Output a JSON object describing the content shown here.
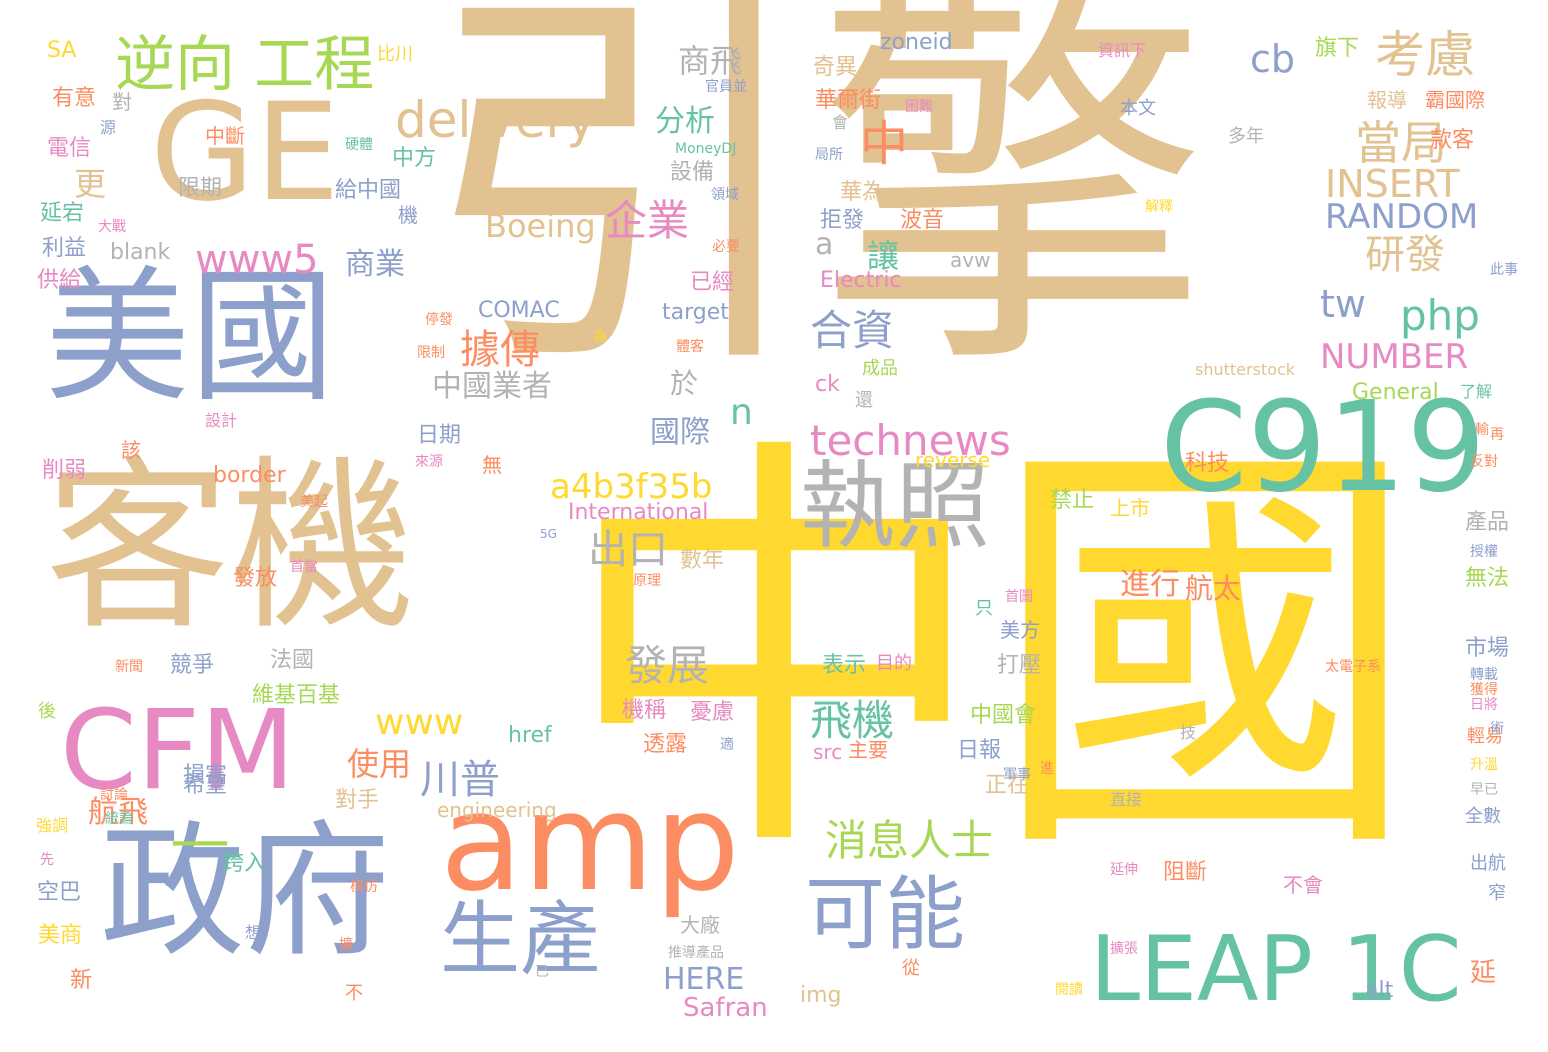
{
  "palette": {
    "tan": "#e2c290",
    "blue": "#8da0cb",
    "yellow": "#ffd92f",
    "green": "#66c2a5",
    "orange": "#fc8d62",
    "pink": "#e78ac3",
    "lime": "#a6d854",
    "gray": "#b3b3b3"
  },
  "words": [
    {
      "text": "引擎",
      "color": "tan",
      "rank": 1
    },
    {
      "text": "中國",
      "color": "yellow",
      "rank": 2
    },
    {
      "text": "客機",
      "color": "tan",
      "rank": 3
    },
    {
      "text": "美國",
      "color": "blue",
      "rank": 4
    },
    {
      "text": "政府",
      "color": "blue",
      "rank": 5
    },
    {
      "text": "GE",
      "color": "tan",
      "rank": 6
    },
    {
      "text": "amp",
      "color": "orange",
      "rank": 7
    },
    {
      "text": "C919",
      "color": "green",
      "rank": 8
    },
    {
      "text": "執照",
      "color": "gray",
      "rank": 9
    },
    {
      "text": "CFM",
      "color": "pink",
      "rank": 10
    },
    {
      "text": "LEAP 1C",
      "color": "green",
      "rank": 11
    },
    {
      "text": "生產",
      "color": "blue",
      "rank": 12
    },
    {
      "text": "可能",
      "color": "blue",
      "rank": 13
    },
    {
      "text": "逆向 工程",
      "color": "lime",
      "rank": 14
    },
    {
      "text": "—",
      "color": "lime",
      "rank": 15
    },
    {
      "text": "delivery",
      "color": "tan",
      "rank": 16
    },
    {
      "text": "technews",
      "color": "pink",
      "rank": 17
    },
    {
      "text": "a4b3f35b",
      "color": "yellow",
      "rank": 18
    },
    {
      "text": "消息人士",
      "color": "lime",
      "rank": 19
    },
    {
      "text": "考慮",
      "color": "tan",
      "rank": 20
    },
    {
      "text": "cb",
      "color": "blue",
      "rank": 21
    },
    {
      "text": "當局",
      "color": "tan",
      "rank": 22
    },
    {
      "text": "INSERT",
      "color": "tan",
      "rank": 23
    },
    {
      "text": "RANDOM",
      "color": "blue",
      "rank": 24
    },
    {
      "text": "研發",
      "color": "tan",
      "rank": 25
    },
    {
      "text": "tw",
      "color": "blue",
      "rank": 26
    },
    {
      "text": "php",
      "color": "green",
      "rank": 27
    },
    {
      "text": "NUMBER",
      "color": "pink",
      "rank": 28
    },
    {
      "text": "企業",
      "color": "pink",
      "rank": 29
    },
    {
      "text": "Boeing",
      "color": "tan",
      "rank": 30
    },
    {
      "text": "www5",
      "color": "pink",
      "rank": 31
    },
    {
      "text": "商業",
      "color": "blue",
      "rank": 32
    },
    {
      "text": "合資",
      "color": "blue",
      "rank": 33
    },
    {
      "text": "據傳",
      "color": "orange",
      "rank": 34
    },
    {
      "text": "出口",
      "color": "gray",
      "rank": 35
    },
    {
      "text": "發展",
      "color": "gray",
      "rank": 36
    },
    {
      "text": "飛機",
      "color": "green",
      "rank": 37
    },
    {
      "text": "川普",
      "color": "blue",
      "rank": 38
    },
    {
      "text": "www",
      "color": "yellow",
      "rank": 39
    },
    {
      "text": "中國業者",
      "color": "gray",
      "rank": 40
    },
    {
      "text": "國際",
      "color": "blue",
      "rank": 41
    },
    {
      "text": "n",
      "color": "green",
      "rank": 42
    },
    {
      "text": "中",
      "color": "orange",
      "rank": 43
    },
    {
      "text": "a",
      "color": "gray",
      "rank": 44
    },
    {
      "text": "讓",
      "color": "green",
      "rank": 45
    },
    {
      "text": "商飛",
      "color": "gray",
      "rank": 46
    },
    {
      "text": "分析",
      "color": "green",
      "rank": 47
    },
    {
      "text": "更",
      "color": "tan",
      "rank": 48
    },
    {
      "text": "使用",
      "color": "orange",
      "rank": 49
    },
    {
      "text": "航飛",
      "color": "orange",
      "rank": 50
    },
    {
      "text": "HERE",
      "color": "blue",
      "rank": 51
    },
    {
      "text": "Safran",
      "color": "pink",
      "rank": 52
    },
    {
      "text": "zoneid",
      "color": "blue",
      "rank": 53
    },
    {
      "text": "旗下",
      "color": "lime",
      "rank": 54
    },
    {
      "text": "款客",
      "color": "orange",
      "rank": 55
    },
    {
      "text": "華爾街",
      "color": "orange",
      "rank": 56
    },
    {
      "text": "奇異",
      "color": "tan",
      "rank": 57
    },
    {
      "text": "霸國際",
      "color": "orange",
      "rank": 58
    },
    {
      "text": "報導",
      "color": "tan",
      "rank": 59
    },
    {
      "text": "華為",
      "color": "tan",
      "rank": 60
    },
    {
      "text": "拒發",
      "color": "blue",
      "rank": 61
    },
    {
      "text": "波音",
      "color": "orange",
      "rank": 62
    },
    {
      "text": "Electric",
      "color": "pink",
      "rank": 63
    },
    {
      "text": "avw",
      "color": "gray",
      "rank": 64
    },
    {
      "text": "target",
      "color": "blue",
      "rank": 65
    },
    {
      "text": "已經",
      "color": "pink",
      "rank": 66
    },
    {
      "text": "COMAC",
      "color": "blue",
      "rank": 67
    },
    {
      "text": "General",
      "color": "lime",
      "rank": 68
    },
    {
      "text": "ck",
      "color": "pink",
      "rank": 69
    },
    {
      "text": "成品",
      "color": "lime",
      "rank": 70
    },
    {
      "text": "shutterstock",
      "color": "tan",
      "rank": 71
    },
    {
      "text": "科技",
      "color": "orange",
      "rank": 72
    },
    {
      "text": "reverse",
      "color": "yellow",
      "rank": 73
    },
    {
      "text": "International",
      "color": "pink",
      "rank": 74
    },
    {
      "text": "禁止",
      "color": "lime",
      "rank": 75
    },
    {
      "text": "上市",
      "color": "yellow",
      "rank": 76
    },
    {
      "text": "產品",
      "color": "gray",
      "rank": 77
    },
    {
      "text": "進行",
      "color": "orange",
      "rank": 78
    },
    {
      "text": "航太",
      "color": "orange",
      "rank": 79
    },
    {
      "text": "數年",
      "color": "tan",
      "rank": 80
    },
    {
      "text": "日期",
      "color": "blue",
      "rank": 81
    },
    {
      "text": "於",
      "color": "gray",
      "rank": 82
    },
    {
      "text": "border",
      "color": "orange",
      "rank": 83
    },
    {
      "text": "blank",
      "color": "gray",
      "rank": 84
    },
    {
      "text": "SA",
      "color": "yellow",
      "rank": 85
    },
    {
      "text": "有意",
      "color": "orange",
      "rank": 86
    },
    {
      "text": "電信",
      "color": "pink",
      "rank": 87
    },
    {
      "text": "延宕",
      "color": "green",
      "rank": 88
    },
    {
      "text": "利益",
      "color": "blue",
      "rank": 89
    },
    {
      "text": "供給",
      "color": "pink",
      "rank": 90
    },
    {
      "text": "削弱",
      "color": "pink",
      "rank": 91
    },
    {
      "text": "限期",
      "color": "gray",
      "rank": 92
    },
    {
      "text": "給中國",
      "color": "blue",
      "rank": 93
    },
    {
      "text": "設備",
      "color": "gray",
      "rank": 94
    },
    {
      "text": "中方",
      "color": "green",
      "rank": 95
    },
    {
      "text": "發放",
      "color": "orange",
      "rank": 96
    },
    {
      "text": "競爭",
      "color": "blue",
      "rank": 97
    },
    {
      "text": "法國",
      "color": "gray",
      "rank": 98
    },
    {
      "text": "維基百基",
      "color": "lime",
      "rank": 99
    },
    {
      "text": "損害",
      "color": "blue",
      "rank": 100
    },
    {
      "text": "希望",
      "color": "blue",
      "rank": 101
    },
    {
      "text": "對手",
      "color": "tan",
      "rank": 102
    },
    {
      "text": "跨入",
      "color": "green",
      "rank": 103
    },
    {
      "text": "空巴",
      "color": "blue",
      "rank": 104
    },
    {
      "text": "美商",
      "color": "yellow",
      "rank": 105
    },
    {
      "text": "新",
      "color": "orange",
      "rank": 106
    },
    {
      "text": "機稱",
      "color": "pink",
      "rank": 107
    },
    {
      "text": "透露",
      "color": "orange",
      "rank": 108
    },
    {
      "text": "憂慮",
      "color": "pink",
      "rank": 109
    },
    {
      "text": "表示",
      "color": "green",
      "rank": 110
    },
    {
      "text": "目的",
      "color": "pink",
      "rank": 111
    },
    {
      "text": "主要",
      "color": "orange",
      "rank": 112
    },
    {
      "text": "src",
      "color": "pink",
      "rank": 113
    },
    {
      "text": "href",
      "color": "green",
      "rank": 114
    },
    {
      "text": "engineering",
      "color": "tan",
      "rank": 115
    },
    {
      "text": "img",
      "color": "tan",
      "rank": 116
    },
    {
      "text": "大廠",
      "color": "gray",
      "rank": 117
    },
    {
      "text": "日報",
      "color": "blue",
      "rank": 118
    },
    {
      "text": "正在",
      "color": "tan",
      "rank": 119
    },
    {
      "text": "中國會",
      "color": "lime",
      "rank": 120
    },
    {
      "text": "美方",
      "color": "blue",
      "rank": 121
    },
    {
      "text": "打壓",
      "color": "gray",
      "rank": 122
    },
    {
      "text": "阻斷",
      "color": "orange",
      "rank": 123
    },
    {
      "text": "不會",
      "color": "pink",
      "rank": 124
    },
    {
      "text": "市場",
      "color": "blue",
      "rank": 125
    },
    {
      "text": "無法",
      "color": "lime",
      "rank": 126
    },
    {
      "text": "alt",
      "color": "blue",
      "rank": 127
    },
    {
      "text": "延",
      "color": "orange",
      "rank": 128
    },
    {
      "text": "多年",
      "color": "gray",
      "rank": 129
    },
    {
      "text": "本文",
      "color": "blue",
      "rank": 130
    },
    {
      "text": "資訊下",
      "color": "pink",
      "rank": 131
    },
    {
      "text": "比川",
      "color": "yellow",
      "rank": 132
    },
    {
      "text": "對",
      "color": "gray",
      "rank": 133
    },
    {
      "text": "中斷",
      "color": "orange",
      "rank": 134
    },
    {
      "text": "源",
      "color": "blue",
      "rank": 135
    },
    {
      "text": "大戰",
      "color": "pink",
      "rank": 136
    },
    {
      "text": "設計",
      "color": "pink",
      "rank": 137
    },
    {
      "text": "該",
      "color": "orange",
      "rank": 138
    },
    {
      "text": "後",
      "color": "lime",
      "rank": 139
    },
    {
      "text": "討論",
      "color": "orange",
      "rank": 140
    },
    {
      "text": "強調",
      "color": "yellow",
      "rank": 141
    },
    {
      "text": "先",
      "color": "pink",
      "rank": 142
    },
    {
      "text": "全數",
      "color": "blue",
      "rank": 143
    },
    {
      "text": "出航",
      "color": "blue",
      "rank": 144
    },
    {
      "text": "窄",
      "color": "blue",
      "rank": 145
    },
    {
      "text": "早已",
      "color": "gray",
      "rank": 146
    },
    {
      "text": "升溫",
      "color": "yellow",
      "rank": 147
    },
    {
      "text": "輕易",
      "color": "orange",
      "rank": 148
    },
    {
      "text": "日將",
      "color": "pink",
      "rank": 149
    },
    {
      "text": "獲得",
      "color": "orange",
      "rank": 150
    },
    {
      "text": "轉載",
      "color": "blue",
      "rank": 151
    },
    {
      "text": "術",
      "color": "blue",
      "rank": 152
    },
    {
      "text": "授權",
      "color": "blue",
      "rank": 153
    },
    {
      "text": "反對",
      "color": "orange",
      "rank": 154
    },
    {
      "text": "再",
      "color": "orange",
      "rank": 155
    },
    {
      "text": "了解",
      "color": "green",
      "rank": 156
    },
    {
      "text": "此事",
      "color": "blue",
      "rank": 157
    },
    {
      "text": "解釋",
      "color": "yellow",
      "rank": 158
    },
    {
      "text": "太電子系",
      "color": "orange",
      "rank": 159
    },
    {
      "text": "必要",
      "color": "orange",
      "rank": 160
    },
    {
      "text": "領域",
      "color": "blue",
      "rank": 161
    },
    {
      "text": "機",
      "color": "blue",
      "rank": 162
    },
    {
      "text": "硬體",
      "color": "green",
      "rank": 163
    },
    {
      "text": "官員並",
      "color": "blue",
      "rank": 164
    },
    {
      "text": "MoneyDJ",
      "color": "green",
      "rank": 165
    },
    {
      "text": "局所",
      "color": "blue",
      "rank": 166
    },
    {
      "text": "困難",
      "color": "pink",
      "rank": 167
    },
    {
      "text": "會",
      "color": "gray",
      "rank": 168
    },
    {
      "text": "停發",
      "color": "orange",
      "rank": 169
    },
    {
      "text": "限制",
      "color": "orange",
      "rank": 170
    },
    {
      "text": "為",
      "color": "yellow",
      "rank": 171
    },
    {
      "text": "體客",
      "color": "orange",
      "rank": 172
    },
    {
      "text": "還",
      "color": "gray",
      "rank": 173
    },
    {
      "text": "輸",
      "color": "orange",
      "rank": 174
    },
    {
      "text": "來源",
      "color": "pink",
      "rank": 175
    },
    {
      "text": "無",
      "color": "orange",
      "rank": 176
    },
    {
      "text": "美起",
      "color": "orange",
      "rank": 177
    },
    {
      "text": "5G",
      "color": "blue",
      "rank": 178
    },
    {
      "text": "原理",
      "color": "orange",
      "rank": 179
    },
    {
      "text": "首當",
      "color": "pink",
      "rank": 180
    },
    {
      "text": "只",
      "color": "green",
      "rank": 181
    },
    {
      "text": "首圖",
      "color": "pink",
      "rank": 182
    },
    {
      "text": "新聞",
      "color": "orange",
      "rank": 183
    },
    {
      "text": "適",
      "color": "blue",
      "rank": 184
    },
    {
      "text": "軍事",
      "color": "blue",
      "rank": 185
    },
    {
      "text": "進",
      "color": "orange",
      "rank": 186
    },
    {
      "text": "直接",
      "color": "gray",
      "rank": 187
    },
    {
      "text": "技",
      "color": "gray",
      "rank": 188
    },
    {
      "text": "延伸",
      "color": "pink",
      "rank": 189
    },
    {
      "text": "模仿",
      "color": "orange",
      "rank": 190
    },
    {
      "text": "想",
      "color": "blue",
      "rank": 191
    },
    {
      "text": "擴",
      "color": "orange",
      "rank": 192
    },
    {
      "text": "不",
      "color": "orange",
      "rank": 193
    },
    {
      "text": "已",
      "color": "gray",
      "rank": 194
    },
    {
      "text": "推導產品",
      "color": "gray",
      "rank": 195
    },
    {
      "text": "從",
      "color": "orange",
      "rank": 196
    },
    {
      "text": "閱讀",
      "color": "yellow",
      "rank": 197
    },
    {
      "text": "擴張",
      "color": "pink",
      "rank": 198
    },
    {
      "text": "統論",
      "color": "green",
      "rank": 199
    }
  ]
}
